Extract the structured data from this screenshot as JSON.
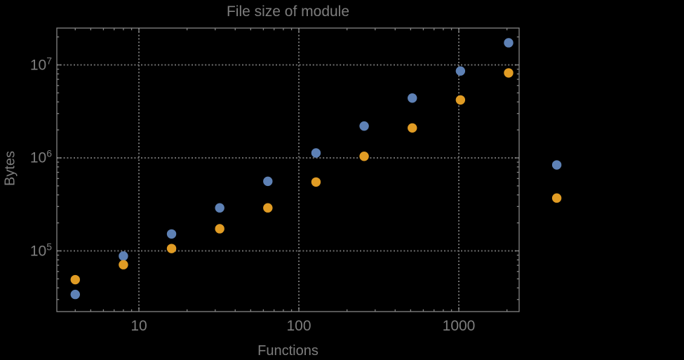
{
  "title": "File size of module",
  "colors": {
    "background": "#000000",
    "frame": "#858585",
    "grid": "#6f6f6f",
    "text": "#7d7d7d",
    "series_blue": "#5E81B5",
    "series_orange": "#E19C24"
  },
  "chart_data": {
    "type": "scatter",
    "title": "File size of module",
    "xlabel": "Functions",
    "ylabel": "Bytes",
    "x_scale": "log",
    "y_scale": "log",
    "grid": true,
    "legend": false,
    "xlim": [
      3.07,
      2383
    ],
    "ylim": [
      22200,
      24900000
    ],
    "x": [
      4,
      8,
      16,
      32,
      64,
      128,
      256,
      512,
      1024,
      2048,
      4096
    ],
    "series": [
      {
        "name": "blue-series",
        "color": "#5E81B5",
        "values": [
          34000,
          88000,
          152000,
          290000,
          560000,
          1130000,
          2200000,
          4400000,
          8600000,
          17300000,
          840000
        ]
      },
      {
        "name": "orange-series",
        "color": "#E19C24",
        "values": [
          49000,
          71000,
          106000,
          173000,
          290000,
          550000,
          1040000,
          2100000,
          4200000,
          8200000,
          370000
        ]
      }
    ],
    "x_ticks": [
      {
        "label": "10",
        "value": 10
      },
      {
        "label": "100",
        "value": 100
      },
      {
        "label": "1000",
        "value": 1000
      }
    ],
    "y_ticks": [
      {
        "base": "10",
        "exp": "5",
        "value": 100000
      },
      {
        "base": "10",
        "exp": "6",
        "value": 1000000
      },
      {
        "base": "10",
        "exp": "7",
        "value": 10000000
      }
    ]
  }
}
